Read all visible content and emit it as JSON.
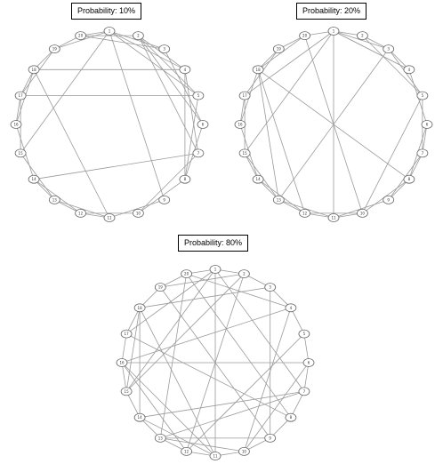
{
  "graphs": [
    {
      "title": "Probability: 10%",
      "labels": [
        "1",
        "2",
        "3",
        "4",
        "5",
        "6",
        "7",
        "8",
        "9",
        "10",
        "11",
        "12",
        "13",
        "14",
        "15",
        "16",
        "17",
        "18",
        "19",
        "20"
      ],
      "edges": [
        [
          0,
          2
        ],
        [
          0,
          3
        ],
        [
          0,
          4
        ],
        [
          1,
          4
        ],
        [
          1,
          5
        ],
        [
          2,
          5
        ],
        [
          3,
          6
        ],
        [
          3,
          7
        ],
        [
          4,
          7
        ],
        [
          5,
          7
        ],
        [
          6,
          9
        ],
        [
          7,
          9
        ],
        [
          8,
          10
        ],
        [
          9,
          11
        ],
        [
          10,
          11
        ],
        [
          10,
          12
        ],
        [
          11,
          12
        ],
        [
          11,
          13
        ],
        [
          12,
          13
        ],
        [
          12,
          14
        ],
        [
          13,
          15
        ],
        [
          14,
          16
        ],
        [
          15,
          16
        ],
        [
          15,
          17
        ],
        [
          16,
          17
        ],
        [
          16,
          18
        ],
        [
          17,
          18
        ],
        [
          18,
          0
        ],
        [
          18,
          19
        ],
        [
          19,
          0
        ],
        [
          19,
          1
        ],
        [
          4,
          16
        ],
        [
          6,
          13
        ],
        [
          17,
          10
        ],
        [
          0,
          14
        ],
        [
          8,
          0
        ],
        [
          1,
          3
        ],
        [
          3,
          17
        ],
        [
          1,
          6
        ],
        [
          19,
          2
        ]
      ]
    },
    {
      "title": "Probability: 20%",
      "labels": [
        "1",
        "2",
        "3",
        "4",
        "5",
        "6",
        "7",
        "8",
        "9",
        "10",
        "11",
        "12",
        "13",
        "14",
        "15",
        "16",
        "17",
        "18",
        "19",
        "20"
      ],
      "edges": [
        [
          0,
          1
        ],
        [
          0,
          2
        ],
        [
          0,
          3
        ],
        [
          1,
          2
        ],
        [
          1,
          4
        ],
        [
          2,
          3
        ],
        [
          2,
          4
        ],
        [
          3,
          5
        ],
        [
          4,
          6
        ],
        [
          5,
          6
        ],
        [
          5,
          7
        ],
        [
          6,
          7
        ],
        [
          6,
          8
        ],
        [
          7,
          8
        ],
        [
          7,
          9
        ],
        [
          8,
          10
        ],
        [
          9,
          10
        ],
        [
          9,
          11
        ],
        [
          10,
          11
        ],
        [
          10,
          12
        ],
        [
          11,
          12
        ],
        [
          11,
          13
        ],
        [
          12,
          13
        ],
        [
          12,
          14
        ],
        [
          13,
          14
        ],
        [
          13,
          15
        ],
        [
          14,
          16
        ],
        [
          15,
          16
        ],
        [
          15,
          17
        ],
        [
          16,
          18
        ],
        [
          17,
          18
        ],
        [
          17,
          19
        ],
        [
          18,
          19
        ],
        [
          19,
          0
        ],
        [
          0,
          10
        ],
        [
          4,
          9
        ],
        [
          2,
          12
        ],
        [
          7,
          17
        ],
        [
          11,
          17
        ],
        [
          14,
          0
        ],
        [
          9,
          19
        ],
        [
          12,
          17
        ],
        [
          0,
          3
        ],
        [
          16,
          0
        ]
      ]
    },
    {
      "title": "Probability: 80%",
      "labels": [
        "1",
        "2",
        "3",
        "4",
        "5",
        "6",
        "7",
        "8",
        "9",
        "10",
        "11",
        "12",
        "13",
        "14",
        "15",
        "16",
        "17",
        "18",
        "19",
        "20"
      ],
      "edges": [
        [
          0,
          1
        ],
        [
          1,
          2
        ],
        [
          2,
          3
        ],
        [
          3,
          4
        ],
        [
          4,
          5
        ],
        [
          5,
          6
        ],
        [
          6,
          7
        ],
        [
          7,
          8
        ],
        [
          8,
          9
        ],
        [
          9,
          10
        ],
        [
          10,
          11
        ],
        [
          11,
          12
        ],
        [
          12,
          13
        ],
        [
          13,
          14
        ],
        [
          14,
          15
        ],
        [
          15,
          16
        ],
        [
          16,
          17
        ],
        [
          17,
          18
        ],
        [
          18,
          19
        ],
        [
          19,
          0
        ],
        [
          0,
          10
        ],
        [
          1,
          14
        ],
        [
          2,
          17
        ],
        [
          3,
          15
        ],
        [
          4,
          11
        ],
        [
          5,
          15
        ],
        [
          6,
          13
        ],
        [
          7,
          16
        ],
        [
          8,
          18
        ],
        [
          9,
          12
        ],
        [
          10,
          13
        ],
        [
          11,
          15
        ],
        [
          12,
          19
        ],
        [
          13,
          17
        ],
        [
          0,
          16
        ],
        [
          2,
          8
        ],
        [
          3,
          19
        ],
        [
          5,
          9
        ],
        [
          7,
          19
        ],
        [
          8,
          12
        ],
        [
          10,
          15
        ],
        [
          14,
          17
        ],
        [
          1,
          11
        ],
        [
          0,
          6
        ],
        [
          0,
          14
        ],
        [
          18,
          1
        ],
        [
          17,
          10
        ],
        [
          6,
          12
        ],
        [
          3,
          9
        ]
      ]
    }
  ]
}
